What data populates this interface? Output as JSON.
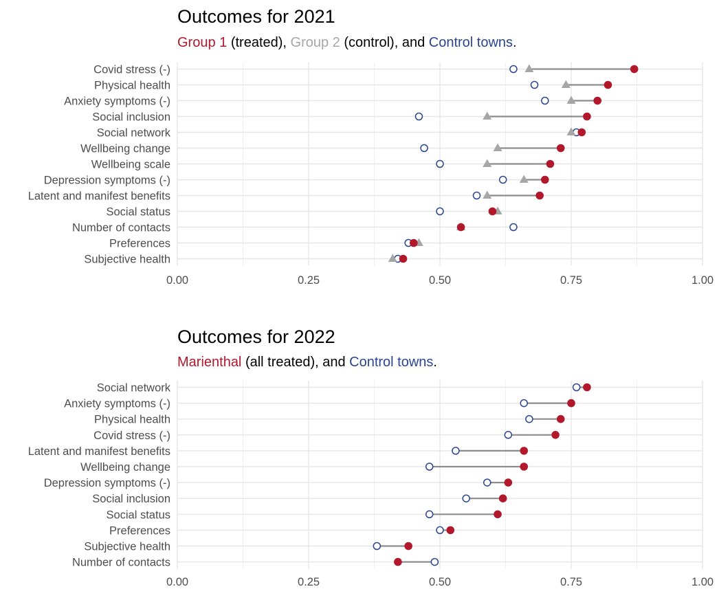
{
  "colors": {
    "treated": "#b2182b",
    "group2": "#a6a6a6",
    "control": "#2b4590",
    "connector": "#8c8c8c",
    "grid": "#e6e6e6",
    "text": "#4d4d4d"
  },
  "chart_data": [
    {
      "type": "dot-plot",
      "title": "Outcomes for 2021",
      "subtitle": {
        "treated_label": "Group 1",
        "treated_suffix": " (treated), ",
        "group2_label": "Group 2",
        "group2_suffix": " (control), and ",
        "control_label": "Control towns",
        "end": "."
      },
      "xlim": [
        0,
        1
      ],
      "xticks": [
        "0.00",
        "0.25",
        "0.50",
        "0.75",
        "1.00"
      ],
      "grid": true,
      "categories": [
        "Covid stress (-)",
        "Physical health",
        "Anxiety symptoms (-)",
        "Social inclusion",
        "Social network",
        "Wellbeing change",
        "Wellbeing scale",
        "Depression symptoms (-)",
        "Latent and manifest benefits",
        "Social status",
        "Number of contacts",
        "Preferences",
        "Subjective health"
      ],
      "series": [
        {
          "name": "Group 1",
          "marker": "filled-circle",
          "values": [
            0.87,
            0.82,
            0.8,
            0.78,
            0.77,
            0.73,
            0.71,
            0.7,
            0.69,
            0.6,
            0.54,
            0.45,
            0.43
          ]
        },
        {
          "name": "Group 2",
          "marker": "triangle",
          "values": [
            0.67,
            0.74,
            0.75,
            0.59,
            0.75,
            0.61,
            0.59,
            0.66,
            0.59,
            0.61,
            0.54,
            0.46,
            0.41
          ]
        },
        {
          "name": "Control towns",
          "marker": "open-circle",
          "values": [
            0.64,
            0.68,
            0.7,
            0.46,
            0.76,
            0.47,
            0.5,
            0.62,
            0.57,
            0.5,
            0.64,
            0.44,
            0.42
          ]
        }
      ]
    },
    {
      "type": "dot-plot",
      "title": "Outcomes for 2022",
      "subtitle": {
        "treated_label": "Marienthal",
        "treated_suffix": " (all treated), and ",
        "control_label": "Control towns",
        "end": "."
      },
      "xlim": [
        0,
        1
      ],
      "xticks": [
        "0.00",
        "0.25",
        "0.50",
        "0.75",
        "1.00"
      ],
      "grid": true,
      "categories": [
        "Social network",
        "Anxiety symptoms (-)",
        "Physical health",
        "Covid stress (-)",
        "Latent and manifest benefits",
        "Wellbeing change",
        "Depression symptoms (-)",
        "Social inclusion",
        "Social status",
        "Preferences",
        "Subjective health",
        "Number of contacts"
      ],
      "series": [
        {
          "name": "Marienthal",
          "marker": "filled-circle",
          "values": [
            0.78,
            0.75,
            0.73,
            0.72,
            0.66,
            0.66,
            0.63,
            0.62,
            0.61,
            0.52,
            0.44,
            0.42
          ]
        },
        {
          "name": "Control towns",
          "marker": "open-circle",
          "values": [
            0.76,
            0.66,
            0.67,
            0.63,
            0.53,
            0.48,
            0.59,
            0.55,
            0.48,
            0.5,
            0.38,
            0.49
          ]
        }
      ]
    }
  ]
}
